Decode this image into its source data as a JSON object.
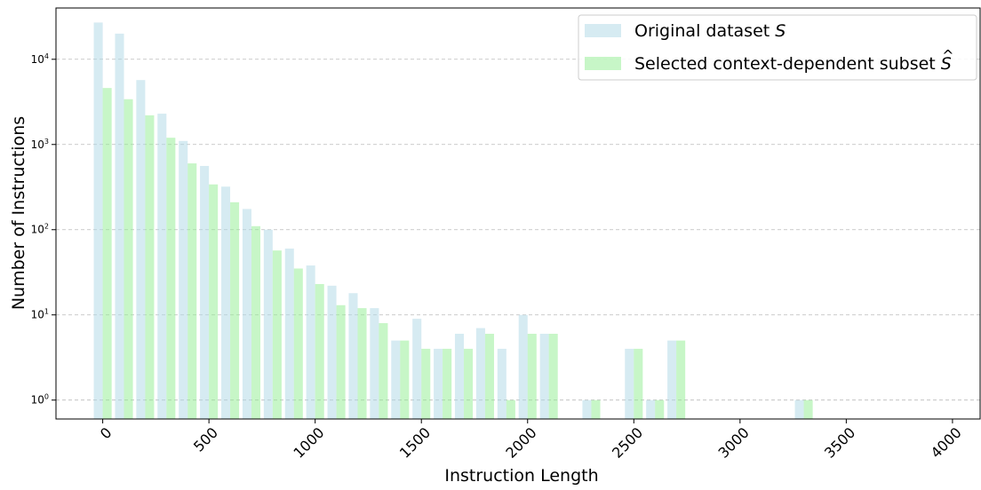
{
  "chart_data": {
    "type": "bar",
    "title": "",
    "xlabel": "Instruction Length",
    "ylabel": "Number of Instructions",
    "yscale": "log",
    "ylim": [
      0.6,
      40000
    ],
    "xlim": [
      -220,
      4130
    ],
    "grid": "horizontal-dashed",
    "legend_position": "top-right",
    "bin_width": 100,
    "x_ticks": [
      "0",
      "500",
      "1000",
      "1500",
      "2000",
      "2500",
      "3000",
      "3500",
      "4000"
    ],
    "x_tick_values": [
      0,
      500,
      1000,
      1500,
      2000,
      2500,
      3000,
      3500,
      4000
    ],
    "y_ticks": [
      {
        "value": 1,
        "base": "10",
        "exp": "0"
      },
      {
        "value": 10,
        "base": "10",
        "exp": "1"
      },
      {
        "value": 100,
        "base": "10",
        "exp": "2"
      },
      {
        "value": 1000,
        "base": "10",
        "exp": "3"
      },
      {
        "value": 10000,
        "base": "10",
        "exp": "4"
      }
    ],
    "series": [
      {
        "name": "Original dataset S",
        "color": "#add8e6",
        "x": [
          0,
          100,
          200,
          300,
          400,
          500,
          600,
          700,
          800,
          900,
          1000,
          1100,
          1200,
          1300,
          1400,
          1500,
          1600,
          1700,
          1800,
          1900,
          2000,
          2100,
          2300,
          2500,
          2600,
          2700,
          3300
        ],
        "values": [
          27000,
          20000,
          5700,
          2300,
          1100,
          560,
          320,
          175,
          100,
          60,
          38,
          22,
          18,
          12,
          5,
          9,
          4,
          6,
          7,
          4,
          10,
          6,
          1,
          4,
          1,
          5,
          1
        ]
      },
      {
        "name": "Selected context-dependent subset Ŝ",
        "color": "#90ee90",
        "x": [
          0,
          100,
          200,
          300,
          400,
          500,
          600,
          700,
          800,
          900,
          1000,
          1100,
          1200,
          1300,
          1400,
          1500,
          1600,
          1700,
          1800,
          1900,
          2000,
          2100,
          2300,
          2500,
          2600,
          2700,
          3300
        ],
        "values": [
          4600,
          3400,
          2200,
          1200,
          600,
          340,
          210,
          110,
          57,
          35,
          23,
          13,
          12,
          8,
          5,
          4,
          4,
          4,
          6,
          1,
          6,
          6,
          1,
          4,
          1,
          5,
          1
        ]
      }
    ],
    "legend": [
      {
        "prefix": "Original dataset ",
        "symbol": "S",
        "hat": false
      },
      {
        "prefix": "Selected context-dependent subset ",
        "symbol": "S",
        "hat": true
      }
    ]
  }
}
